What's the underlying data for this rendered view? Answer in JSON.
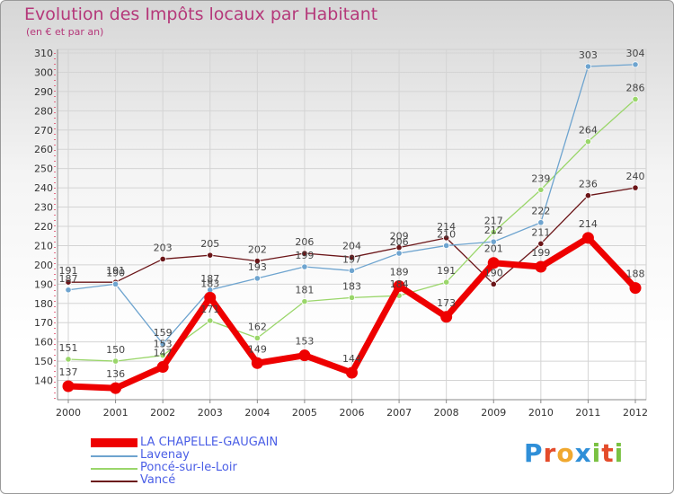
{
  "header": {
    "title": "Evolution des Impôts locaux par Habitant",
    "subtitle": "(en € et par an)"
  },
  "logo": {
    "text": "Proxiti",
    "letters": [
      "P",
      "r",
      "o",
      "x",
      "i",
      "t",
      "i"
    ]
  },
  "chart_data": {
    "type": "line",
    "title": "Evolution des Impôts locaux par Habitant",
    "subtitle": "(en € et par an)",
    "xlabel": "",
    "ylabel": "",
    "x": [
      "2000",
      "2001",
      "2002",
      "2003",
      "2004",
      "2005",
      "2006",
      "2007",
      "2008",
      "2009",
      "2010",
      "2011",
      "2012"
    ],
    "ylim": [
      130,
      310
    ],
    "yticks": [
      140,
      150,
      160,
      170,
      180,
      190,
      200,
      210,
      220,
      230,
      240,
      250,
      260,
      270,
      280,
      290,
      300,
      310
    ],
    "grid": true,
    "legend_position": "bottom-left",
    "series": [
      {
        "name": "Vancé",
        "color": "#6b1518",
        "line_width": 1.3,
        "marker_radius": 3.2,
        "values": [
          191,
          191,
          203,
          205,
          202,
          206,
          204,
          209,
          214,
          190,
          211,
          236,
          240
        ]
      },
      {
        "name": "Poncé-sur-le-Loir",
        "color": "#9ad66a",
        "line_width": 1.3,
        "marker_radius": 3.2,
        "values": [
          151,
          150,
          153,
          171,
          162,
          181,
          183,
          184,
          191,
          217,
          239,
          264,
          286
        ]
      },
      {
        "name": "Lavenay",
        "color": "#6ea4cf",
        "line_width": 1.3,
        "marker_radius": 3.2,
        "values": [
          187,
          190,
          159,
          187,
          193,
          199,
          197,
          206,
          210,
          212,
          222,
          303,
          304
        ]
      },
      {
        "name": "LA CHAPELLE-GAUGAIN",
        "color": "#ee0000",
        "line_width": 7,
        "marker_radius": 6.5,
        "values": [
          137,
          136,
          147,
          183,
          149,
          153,
          144,
          189,
          173,
          201,
          199,
          214,
          188
        ]
      }
    ],
    "legend_order": [
      "LA CHAPELLE-GAUGAIN",
      "Lavenay",
      "Poncé-sur-le-Loir",
      "Vancé"
    ]
  }
}
